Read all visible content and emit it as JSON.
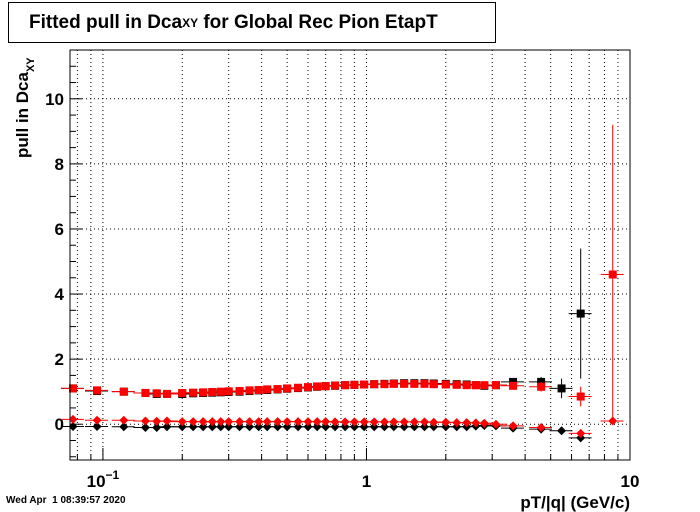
{
  "chart_data": {
    "type": "scatter",
    "title_main": "Fitted pull in Dca",
    "title_sub": "XY",
    "title_rest": " for Global Rec Pion EtapT",
    "ylabel_main": "pull in Dca",
    "ylabel_sub": "XY",
    "xlabel": "pT/|q| (GeV/c)",
    "xscale": "log",
    "xlim": [
      0.075,
      10
    ],
    "ylim": [
      -1.1,
      11.5
    ],
    "grid": true,
    "x_tick_labels": [
      {
        "x": 0.1,
        "base": "10",
        "exp": "−1"
      },
      {
        "x": 1,
        "base": "1",
        "exp": ""
      },
      {
        "x": 10,
        "base": "10",
        "exp": ""
      }
    ],
    "y_ticks": [
      0,
      2,
      4,
      6,
      8,
      10
    ],
    "series": [
      {
        "color": "#000000",
        "marker": "square",
        "x": [
          0.077,
          0.095,
          0.12,
          0.145,
          0.16,
          0.175,
          0.2,
          0.22,
          0.24,
          0.26,
          0.28,
          0.3,
          0.33,
          0.36,
          0.39,
          0.42,
          0.46,
          0.5,
          0.55,
          0.6,
          0.65,
          0.7,
          0.76,
          0.83,
          0.9,
          0.98,
          1.07,
          1.17,
          1.27,
          1.39,
          1.52,
          1.66,
          1.8,
          2.0,
          2.2,
          2.4,
          2.6,
          2.8,
          3.1,
          3.6,
          4.6,
          5.5,
          6.5
        ],
        "y": [
          1.1,
          1.02,
          1.0,
          0.96,
          0.93,
          0.93,
          0.93,
          0.95,
          0.96,
          0.97,
          0.98,
          0.99,
          1.0,
          1.02,
          1.04,
          1.05,
          1.07,
          1.09,
          1.11,
          1.13,
          1.15,
          1.17,
          1.18,
          1.2,
          1.21,
          1.22,
          1.23,
          1.24,
          1.25,
          1.26,
          1.26,
          1.26,
          1.25,
          1.24,
          1.23,
          1.22,
          1.2,
          1.18,
          1.2,
          1.3,
          1.3,
          1.1,
          3.4
        ],
        "yerr": [
          0.05,
          0.05,
          0.05,
          0.05,
          0.05,
          0.05,
          0.05,
          0.05,
          0.05,
          0.05,
          0.05,
          0.05,
          0.05,
          0.05,
          0.05,
          0.05,
          0.05,
          0.05,
          0.05,
          0.05,
          0.05,
          0.05,
          0.05,
          0.05,
          0.05,
          0.05,
          0.05,
          0.05,
          0.05,
          0.05,
          0.05,
          0.05,
          0.05,
          0.05,
          0.05,
          0.05,
          0.05,
          0.05,
          0.07,
          0.1,
          0.15,
          0.3,
          2.0
        ]
      },
      {
        "color": "#000000",
        "marker": "diamond",
        "x": [
          0.077,
          0.095,
          0.12,
          0.145,
          0.16,
          0.175,
          0.2,
          0.22,
          0.24,
          0.26,
          0.28,
          0.3,
          0.33,
          0.36,
          0.39,
          0.42,
          0.46,
          0.5,
          0.55,
          0.6,
          0.65,
          0.7,
          0.76,
          0.83,
          0.9,
          0.98,
          1.07,
          1.17,
          1.27,
          1.39,
          1.52,
          1.66,
          1.8,
          2.0,
          2.2,
          2.4,
          2.6,
          2.8,
          3.1,
          3.6,
          4.6,
          5.5,
          6.5
        ],
        "y": [
          -0.07,
          -0.07,
          -0.08,
          -0.1,
          -0.1,
          -0.08,
          -0.08,
          -0.08,
          -0.08,
          -0.08,
          -0.08,
          -0.08,
          -0.08,
          -0.08,
          -0.08,
          -0.08,
          -0.08,
          -0.08,
          -0.08,
          -0.08,
          -0.08,
          -0.08,
          -0.08,
          -0.08,
          -0.08,
          -0.08,
          -0.08,
          -0.08,
          -0.08,
          -0.08,
          -0.08,
          -0.08,
          -0.08,
          -0.08,
          -0.08,
          -0.08,
          -0.06,
          -0.04,
          -0.05,
          -0.12,
          -0.15,
          -0.2,
          -0.42
        ],
        "yerr": [
          0.03,
          0.03,
          0.03,
          0.03,
          0.03,
          0.03,
          0.03,
          0.03,
          0.03,
          0.03,
          0.03,
          0.03,
          0.03,
          0.03,
          0.03,
          0.03,
          0.03,
          0.03,
          0.03,
          0.03,
          0.03,
          0.03,
          0.03,
          0.03,
          0.03,
          0.03,
          0.03,
          0.03,
          0.03,
          0.03,
          0.03,
          0.03,
          0.03,
          0.03,
          0.03,
          0.03,
          0.03,
          0.03,
          0.05,
          0.05,
          0.07,
          0.1,
          0.1
        ]
      },
      {
        "color": "#ff0000",
        "marker": "square",
        "x": [
          0.077,
          0.095,
          0.12,
          0.145,
          0.16,
          0.175,
          0.2,
          0.22,
          0.24,
          0.26,
          0.28,
          0.3,
          0.33,
          0.36,
          0.39,
          0.42,
          0.46,
          0.5,
          0.55,
          0.6,
          0.65,
          0.7,
          0.76,
          0.83,
          0.9,
          0.98,
          1.07,
          1.17,
          1.27,
          1.39,
          1.52,
          1.66,
          1.8,
          2.0,
          2.2,
          2.4,
          2.6,
          2.8,
          3.1,
          3.6,
          4.6,
          6.5,
          8.6
        ],
        "y": [
          1.1,
          1.04,
          1.0,
          0.96,
          0.95,
          0.93,
          0.96,
          0.97,
          0.98,
          0.99,
          1.0,
          1.01,
          1.02,
          1.04,
          1.05,
          1.07,
          1.08,
          1.1,
          1.12,
          1.14,
          1.16,
          1.17,
          1.19,
          1.2,
          1.21,
          1.22,
          1.23,
          1.23,
          1.24,
          1.24,
          1.24,
          1.24,
          1.23,
          1.22,
          1.21,
          1.2,
          1.2,
          1.2,
          1.2,
          1.18,
          1.15,
          0.85,
          4.6
        ],
        "yerr": [
          0.05,
          0.05,
          0.05,
          0.05,
          0.05,
          0.05,
          0.05,
          0.05,
          0.05,
          0.05,
          0.05,
          0.05,
          0.05,
          0.05,
          0.05,
          0.05,
          0.05,
          0.05,
          0.05,
          0.05,
          0.05,
          0.05,
          0.05,
          0.05,
          0.05,
          0.05,
          0.05,
          0.05,
          0.05,
          0.05,
          0.05,
          0.05,
          0.05,
          0.05,
          0.05,
          0.05,
          0.05,
          0.05,
          0.07,
          0.1,
          0.15,
          0.3,
          4.6
        ]
      },
      {
        "color": "#ff0000",
        "marker": "diamond",
        "x": [
          0.077,
          0.095,
          0.12,
          0.145,
          0.16,
          0.175,
          0.2,
          0.22,
          0.24,
          0.26,
          0.28,
          0.3,
          0.33,
          0.36,
          0.39,
          0.42,
          0.46,
          0.5,
          0.55,
          0.6,
          0.65,
          0.7,
          0.76,
          0.83,
          0.9,
          0.98,
          1.07,
          1.17,
          1.27,
          1.39,
          1.52,
          1.66,
          1.8,
          2.0,
          2.2,
          2.4,
          2.6,
          2.8,
          3.1,
          3.6,
          4.6,
          6.5,
          8.6
        ],
        "y": [
          0.15,
          0.12,
          0.12,
          0.1,
          0.09,
          0.1,
          0.08,
          0.08,
          0.08,
          0.08,
          0.08,
          0.08,
          0.08,
          0.08,
          0.08,
          0.08,
          0.08,
          0.08,
          0.08,
          0.08,
          0.08,
          0.08,
          0.07,
          0.07,
          0.07,
          0.07,
          0.07,
          0.07,
          0.07,
          0.07,
          0.07,
          0.07,
          0.06,
          0.06,
          0.05,
          0.05,
          0.04,
          0.03,
          0.0,
          -0.05,
          -0.1,
          -0.28,
          0.1
        ],
        "yerr": [
          0.03,
          0.03,
          0.03,
          0.03,
          0.03,
          0.03,
          0.03,
          0.03,
          0.03,
          0.03,
          0.03,
          0.03,
          0.03,
          0.03,
          0.03,
          0.03,
          0.03,
          0.03,
          0.03,
          0.03,
          0.03,
          0.03,
          0.03,
          0.03,
          0.03,
          0.03,
          0.03,
          0.03,
          0.03,
          0.03,
          0.03,
          0.03,
          0.03,
          0.03,
          0.03,
          0.03,
          0.03,
          0.03,
          0.05,
          0.05,
          0.07,
          0.1,
          0.1
        ]
      }
    ]
  },
  "footer": {
    "timestamp": "Wed Apr  1 08:39:57 2020"
  }
}
